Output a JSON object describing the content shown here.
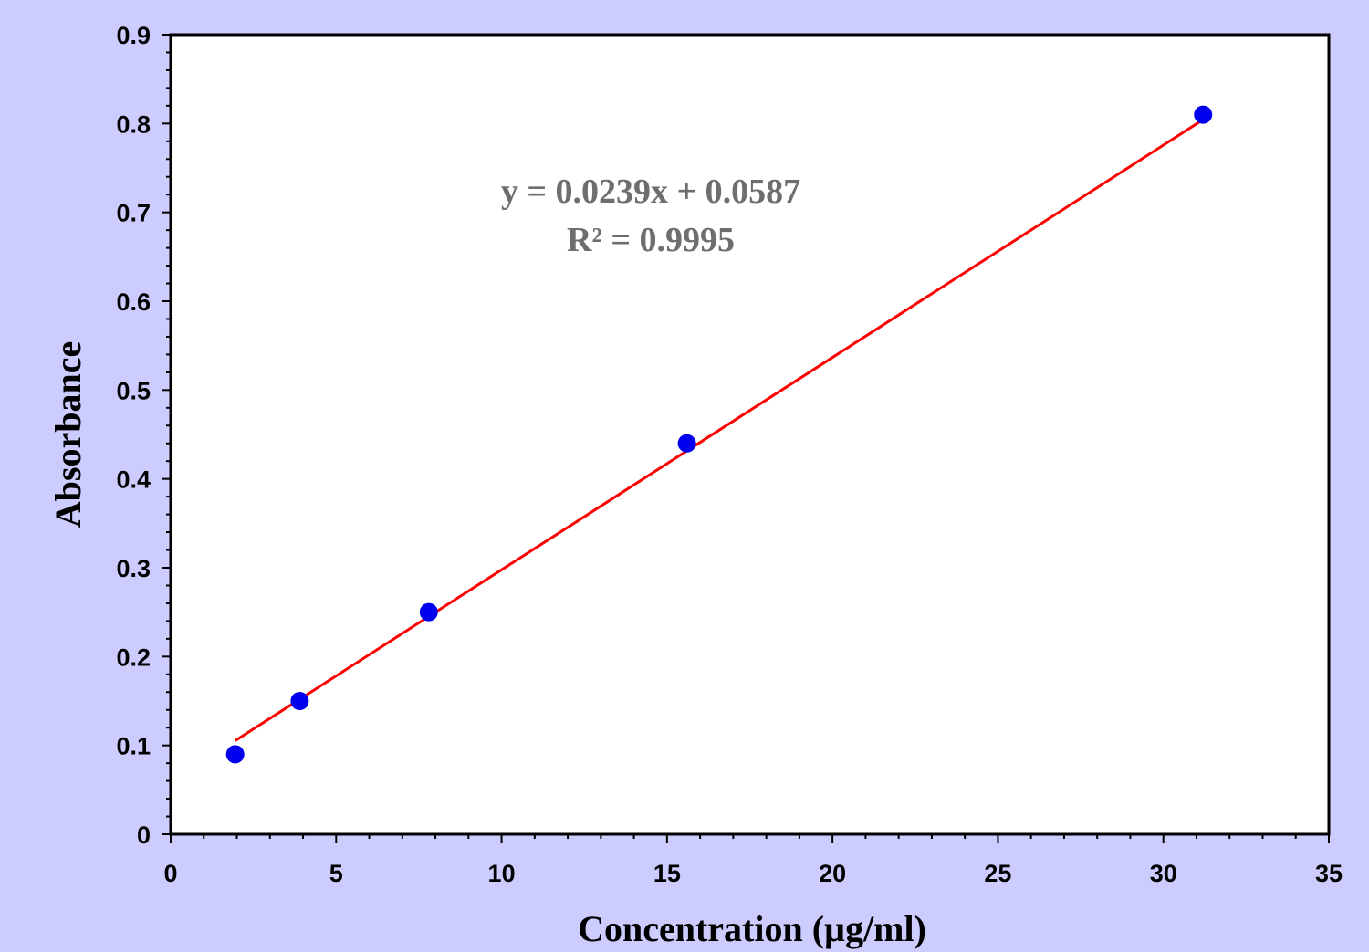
{
  "chart_data": {
    "type": "scatter",
    "xlabel": "Concentration (µg/ml)",
    "ylabel": "Absorbance",
    "xlim": [
      0,
      35
    ],
    "ylim": [
      0,
      0.9
    ],
    "x_ticks": [
      "0",
      "5",
      "10",
      "15",
      "20",
      "25",
      "30",
      "35"
    ],
    "y_ticks": [
      "0",
      "0.1",
      "0.2",
      "0.3",
      "0.4",
      "0.5",
      "0.6",
      "0.7",
      "0.8",
      "0.9"
    ],
    "series": [
      {
        "x": [
          1.95,
          3.9,
          7.8,
          15.6,
          31.2
        ],
        "y": [
          0.09,
          0.15,
          0.25,
          0.44,
          0.81
        ],
        "marker_color": "#0000ee"
      }
    ],
    "trendline": {
      "slope": 0.0239,
      "intercept": 0.0587,
      "x_range": [
        1.95,
        31.2
      ],
      "color": "#ff0000"
    },
    "annotations": {
      "equation": "y = 0.0239x + 0.0587",
      "r_squared": "R² = 0.9995"
    },
    "grid": false,
    "legend": "none"
  },
  "colors": {
    "background": "#ccccff",
    "plot_area": "#ffffff",
    "marker": "#0000ee",
    "trendline": "#ff0000",
    "annotation_text": "#6e6e6e"
  }
}
